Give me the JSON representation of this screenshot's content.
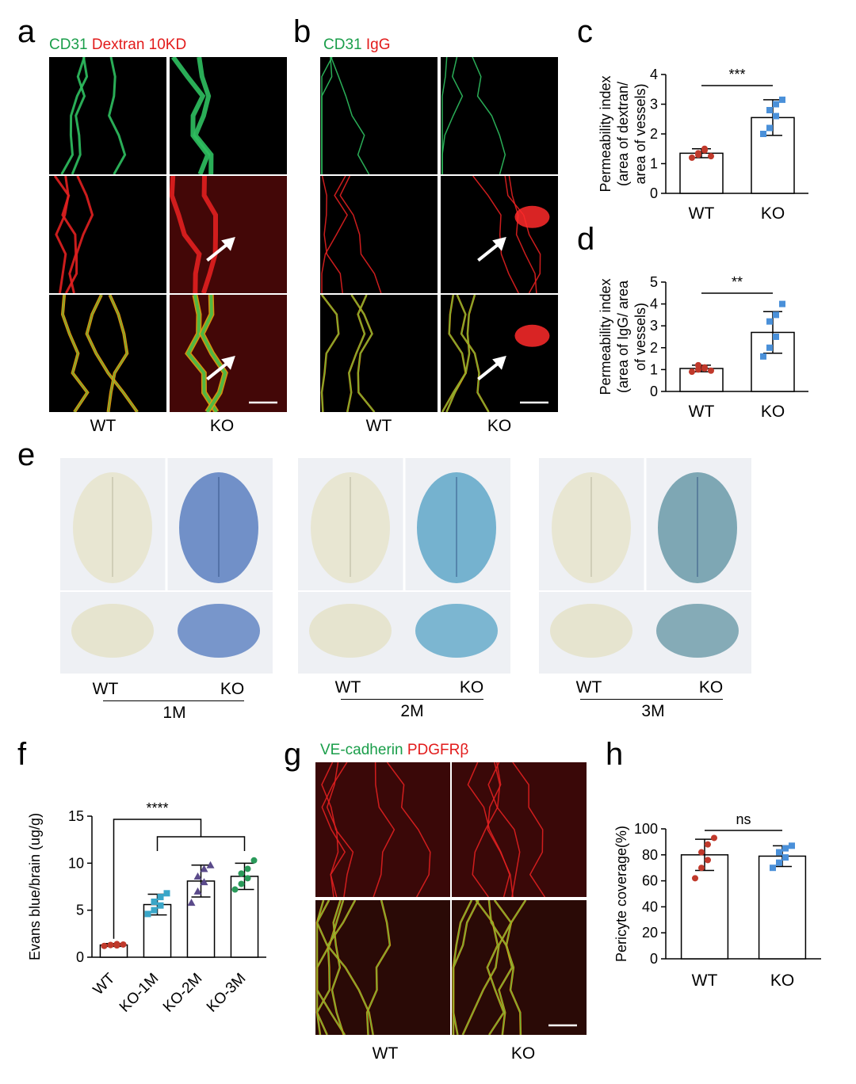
{
  "panels": {
    "a": {
      "letter": "a",
      "label_green": "CD31",
      "label_red": "Dextran 10KD",
      "groups": [
        "WT",
        "KO"
      ]
    },
    "b": {
      "letter": "b",
      "label_green": "CD31",
      "label_red": "IgG",
      "groups": [
        "WT",
        "KO"
      ]
    },
    "e": {
      "letter": "e",
      "timepoints": [
        {
          "wt": "WT",
          "ko": "KO",
          "tp": "1M"
        },
        {
          "wt": "WT",
          "ko": "KO",
          "tp": "2M"
        },
        {
          "wt": "WT",
          "ko": "KO",
          "tp": "3M"
        }
      ]
    },
    "f": {
      "letter": "f"
    },
    "g": {
      "letter": "g",
      "label_green": "VE-cadherin",
      "label_red": "PDGFRβ",
      "groups": [
        "WT",
        "KO"
      ]
    },
    "h": {
      "letter": "h"
    },
    "c": {
      "letter": "c"
    },
    "d": {
      "letter": "d"
    }
  },
  "colors": {
    "wt_points": "#c0392b",
    "ko_points": "#4a90d9",
    "f_ko1": "#3aa6c8",
    "f_ko2": "#5a4a8a",
    "f_ko3": "#2a9a5a"
  },
  "chart_data": [
    {
      "id": "c",
      "type": "bar",
      "ylabel_lines": [
        "Permeability index",
        "(area of dextran/",
        "area of vessels)"
      ],
      "categories": [
        "WT",
        "KO"
      ],
      "values": [
        1.35,
        2.55
      ],
      "errors": [
        0.15,
        0.6
      ],
      "points": [
        [
          1.2,
          1.3,
          1.45,
          1.35,
          1.5,
          1.25
        ],
        [
          2.0,
          2.2,
          2.6,
          2.8,
          3.0,
          3.15
        ]
      ],
      "ylim": [
        0,
        4
      ],
      "yticks": [
        0,
        1,
        2,
        3,
        4
      ],
      "significance": "***"
    },
    {
      "id": "d",
      "type": "bar",
      "ylabel_lines": [
        "Permeability index",
        "(area of IgG/ area",
        "of vessels)"
      ],
      "categories": [
        "WT",
        "KO"
      ],
      "values": [
        1.05,
        2.7
      ],
      "errors": [
        0.15,
        0.95
      ],
      "points": [
        [
          0.9,
          1.0,
          1.1,
          1.2,
          1.05,
          0.95
        ],
        [
          1.6,
          2.0,
          2.5,
          3.2,
          3.5,
          4.0
        ]
      ],
      "ylim": [
        0,
        5
      ],
      "yticks": [
        0,
        1,
        2,
        3,
        4,
        5
      ],
      "significance": "**"
    },
    {
      "id": "f",
      "type": "bar",
      "ylabel_lines": [
        "Evans blue/brain (ug/g)"
      ],
      "categories": [
        "WT",
        "KO-1M",
        "KO-2M",
        "KO-3M"
      ],
      "values": [
        1.3,
        5.6,
        8.1,
        8.6
      ],
      "errors": [
        0.15,
        1.1,
        1.7,
        1.4
      ],
      "points": [
        [
          1.2,
          1.3,
          1.4,
          1.3,
          1.25,
          1.35
        ],
        [
          4.6,
          5.0,
          5.5,
          5.9,
          6.4,
          6.8
        ],
        [
          5.8,
          7.0,
          8.0,
          8.6,
          9.4,
          9.8
        ],
        [
          7.2,
          7.8,
          8.4,
          8.9,
          9.4,
          10.3
        ]
      ],
      "ylim": [
        0,
        15
      ],
      "yticks": [
        0,
        5,
        10,
        15
      ],
      "significance": "****"
    },
    {
      "id": "h",
      "type": "bar",
      "ylabel_lines": [
        "Pericyte coverage(%)"
      ],
      "categories": [
        "WT",
        "KO"
      ],
      "values": [
        80,
        79
      ],
      "errors": [
        12,
        8
      ],
      "points": [
        [
          62,
          70,
          76,
          82,
          88,
          93
        ],
        [
          70,
          74,
          78,
          82,
          85,
          87
        ]
      ],
      "ylim": [
        0,
        100
      ],
      "yticks": [
        0,
        20,
        40,
        60,
        80,
        100
      ],
      "significance": "ns"
    }
  ]
}
